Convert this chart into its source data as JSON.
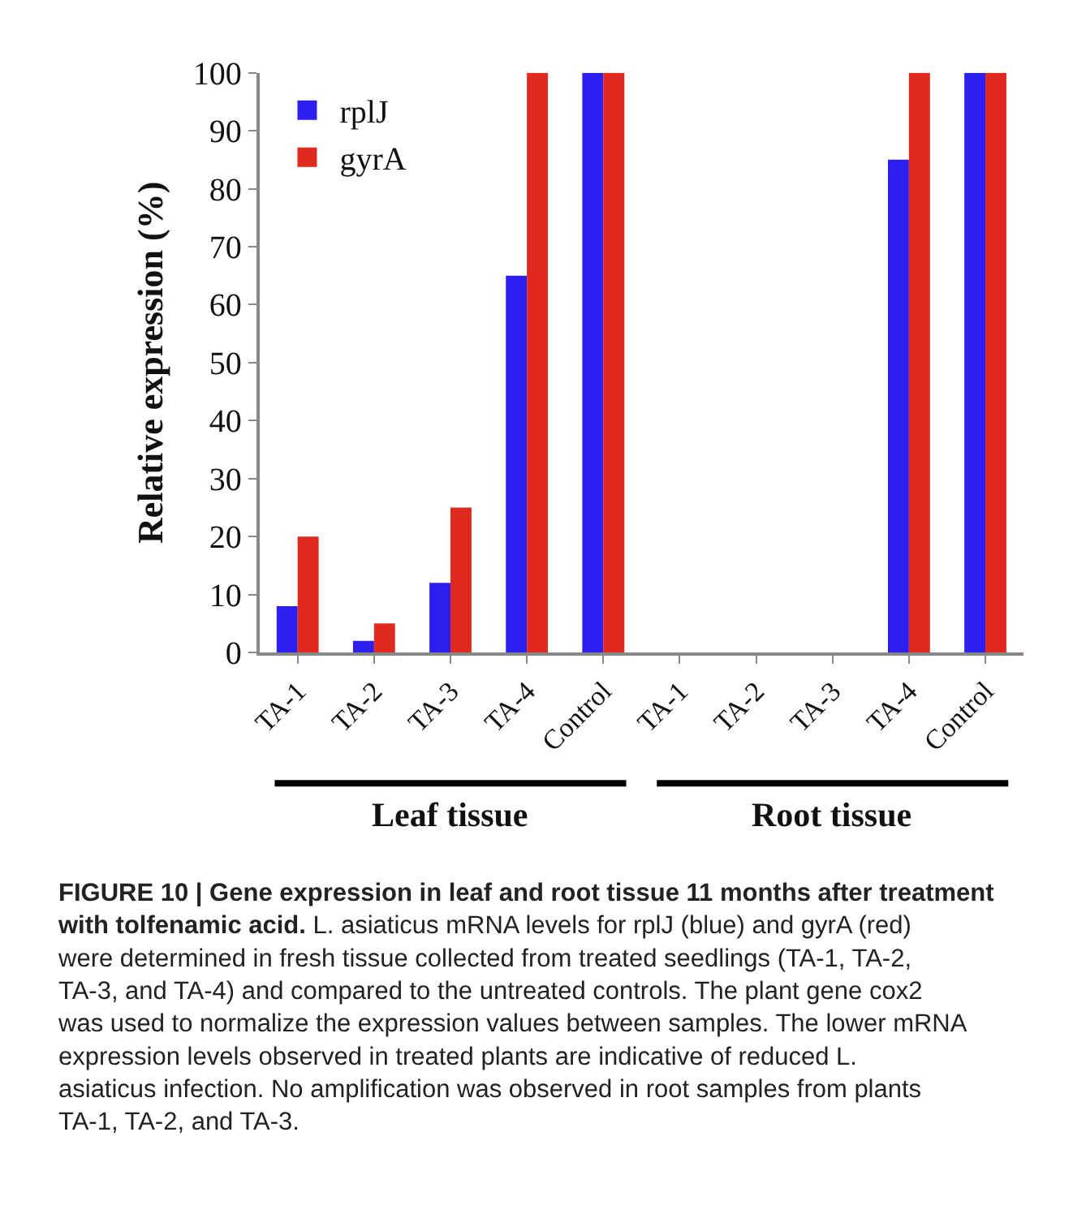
{
  "chart_data": {
    "type": "bar",
    "title": "FIGURE 10 | Gene expression in leaf and root tissue 11 months after treatment with tolfenamic acid.",
    "ylabel": "Relative expression (%)",
    "categories": [
      "TA-1",
      "TA-2",
      "TA-3",
      "TA-4",
      "Control",
      "TA-1",
      "TA-2",
      "TA-3",
      "TA-4",
      "Control"
    ],
    "series": [
      {
        "name": "rplJ",
        "color": "#2c1ff0",
        "values": [
          8,
          2,
          12,
          65,
          100,
          0,
          0,
          0,
          85,
          100
        ]
      },
      {
        "name": "gyrA",
        "color": "#e02a1f",
        "values": [
          20,
          5,
          25,
          100,
          100,
          0,
          0,
          0,
          100,
          100
        ]
      }
    ],
    "ylim": [
      0,
      100
    ],
    "yticks": [
      0,
      10,
      20,
      30,
      40,
      50,
      60,
      70,
      80,
      90,
      100
    ],
    "legend": "top left",
    "annotations": [
      "Leaf tissue",
      "Root tissue",
      "L. asiaticus mRNA levels for rplJ (blue) and gyrA (red) were determined in fresh tissue collected from treated seedlings (TA-1, TA-2, TA-3, and TA-4) and compared to the untreated controls. The plant gene cox2 was used to normalize the expression values between samples. The lower mRNA expression levels observed in treated plants are indicative of reduced L. asiaticus infection. No amplification was observed in root samples from plants TA-1, TA-2, and TA-3."
    ]
  }
}
